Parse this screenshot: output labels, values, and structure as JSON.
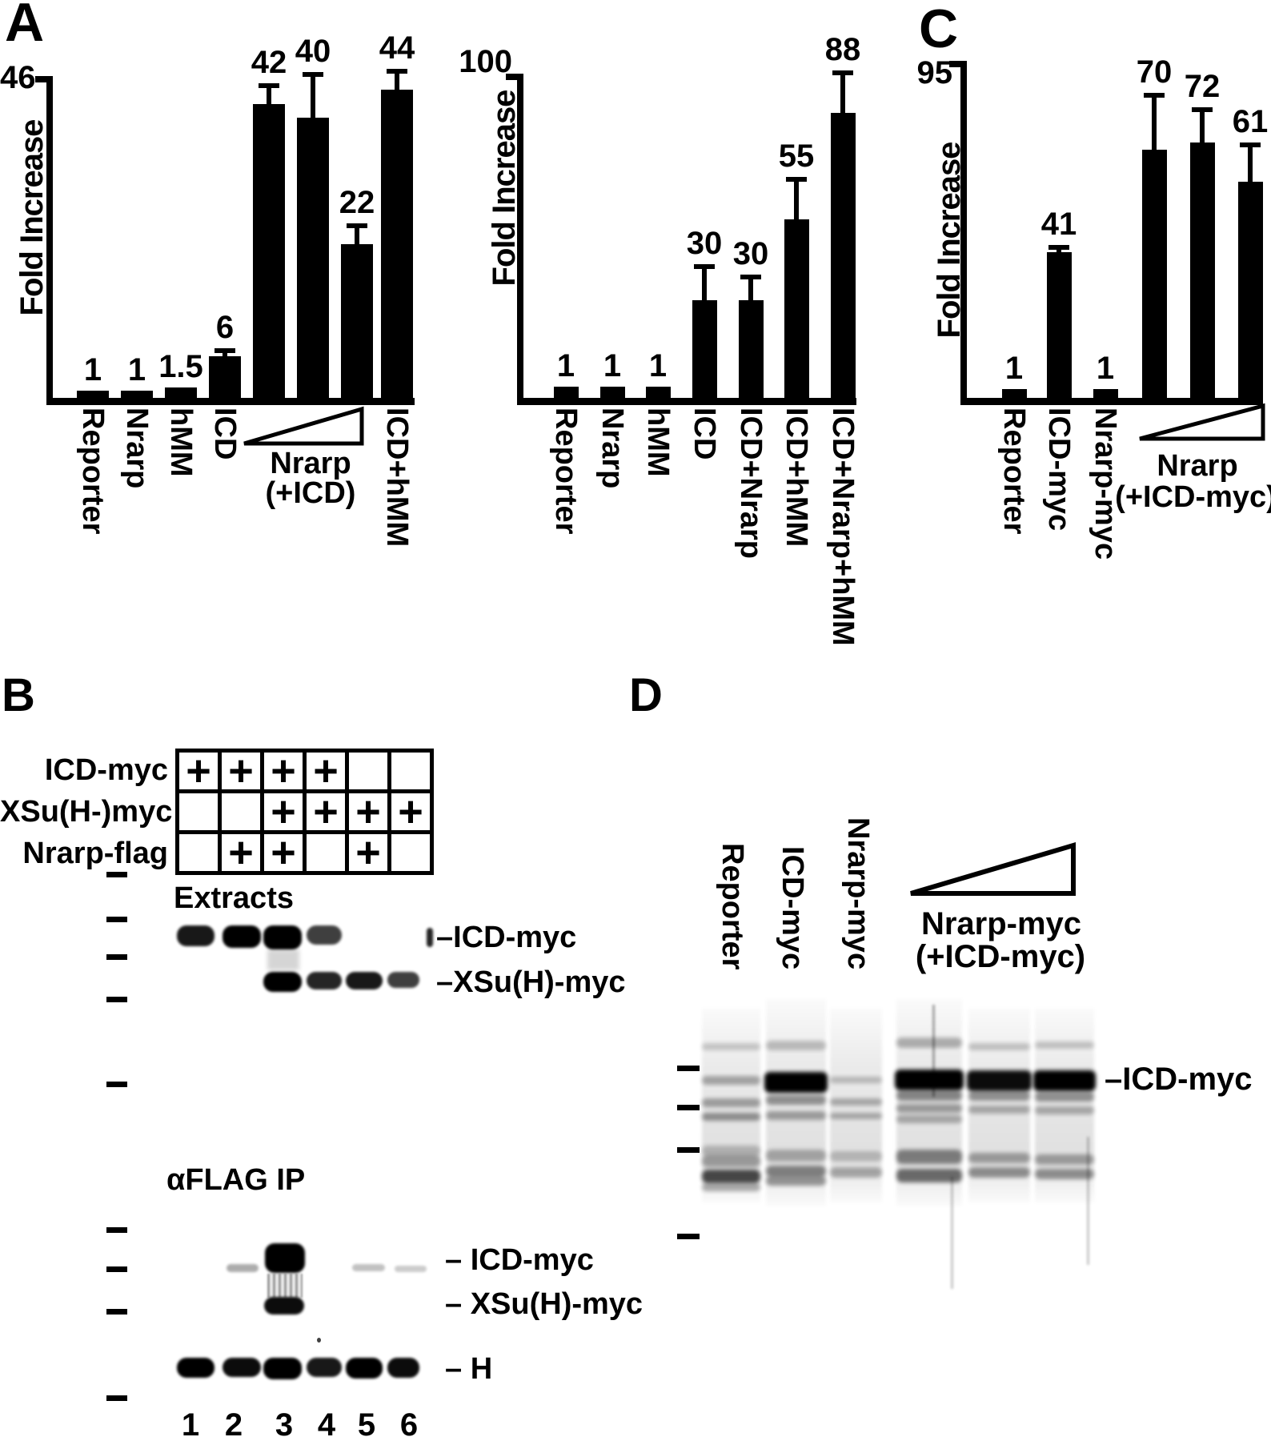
{
  "figure": {
    "background": "#ffffff",
    "ink": "#000000",
    "panel_labels": {
      "a": "A",
      "b": "B",
      "c": "C",
      "d": "D"
    }
  },
  "chart_data": [
    {
      "id": "panel-a-left-chart",
      "type": "bar",
      "title": "",
      "xlabel": "",
      "ylabel": "Fold Increase",
      "axis_top_label": "46",
      "ylim": [
        0,
        46
      ],
      "grid": false,
      "legend": "none",
      "categories": [
        "Reporter",
        "Nrarp",
        "hMM",
        "ICD",
        "",
        "",
        "",
        "ICD+hMM"
      ],
      "values": [
        1,
        1,
        1.5,
        6,
        42,
        40,
        22,
        44
      ],
      "errors_plus": [
        0,
        0,
        0,
        1.2,
        3,
        6.5,
        3,
        3
      ],
      "value_labels": [
        "1",
        "1",
        "1.5",
        "6",
        "42",
        "40",
        "22",
        "44"
      ],
      "dose_group": {
        "bar_indices": [
          4,
          5,
          6
        ],
        "label_line1": "Nrarp",
        "label_line2": "(+ICD)"
      }
    },
    {
      "id": "panel-a-right-chart",
      "type": "bar",
      "title": "",
      "xlabel": "",
      "ylabel": "Fold Increase",
      "axis_top_label": "100",
      "ylim": [
        0,
        100
      ],
      "grid": false,
      "legend": "none",
      "categories": [
        "Reporter",
        "Nrarp",
        "hMM",
        "ICD",
        "ICD+Nrarp",
        "ICD+hMM",
        "ICD+Nrarp+hMM"
      ],
      "values": [
        1,
        1,
        1,
        30,
        30,
        55,
        88
      ],
      "errors_plus": [
        0,
        0,
        0,
        11,
        8,
        13,
        13
      ],
      "value_labels": [
        "1",
        "1",
        "1",
        "30",
        "30",
        "55",
        "88"
      ],
      "dose_group": null
    },
    {
      "id": "panel-c-chart",
      "type": "bar",
      "title": "",
      "xlabel": "",
      "ylabel": "Fold Increase",
      "axis_top_label": "95",
      "ylim": [
        0,
        95
      ],
      "grid": false,
      "legend": "none",
      "categories": [
        "Reporter",
        "ICD-myc",
        "Nrarp-myc",
        "",
        "",
        ""
      ],
      "values": [
        1,
        41,
        1,
        70,
        72,
        61
      ],
      "errors_plus": [
        0,
        2,
        0,
        16,
        10,
        11
      ],
      "value_labels": [
        "1",
        "41",
        "1",
        "70",
        "72",
        "61"
      ],
      "dose_group": {
        "bar_indices": [
          3,
          4,
          5
        ],
        "label_line1": "Nrarp",
        "label_line2": "(+ICD-myc)"
      }
    }
  ],
  "panel_b": {
    "table": {
      "row_labels": [
        "ICD-myc",
        "XSu(H-)myc",
        "Nrarp-flag"
      ],
      "plus_sign": "+",
      "matrix": [
        [
          1,
          1,
          1,
          1,
          0,
          0
        ],
        [
          0,
          0,
          1,
          1,
          1,
          1
        ],
        [
          0,
          1,
          1,
          0,
          1,
          0
        ]
      ]
    },
    "extracts": {
      "title": "Extracts",
      "rows": [
        {
          "label": "–ICD-myc",
          "intensities": [
            0.9,
            1,
            1,
            0.75,
            0,
            0
          ]
        },
        {
          "label": "–XSu(H)-myc",
          "intensities": [
            0,
            0,
            1,
            0.85,
            0.9,
            0.75
          ]
        }
      ]
    },
    "ip": {
      "title": "αFLAG IP",
      "rows": [
        {
          "label": "– ICD-myc",
          "intensities": [
            0,
            0.32,
            1,
            0,
            0.24,
            0.2
          ]
        },
        {
          "label": "– XSu(H)-myc",
          "intensities": [
            0,
            0,
            0.95,
            0,
            0,
            0
          ]
        },
        {
          "label": "– H",
          "intensities": [
            1,
            0.95,
            1,
            0.9,
            1,
            0.95
          ]
        }
      ]
    },
    "lane_numbers": [
      "1",
      "2",
      "3",
      "4",
      "5",
      "6"
    ]
  },
  "panel_d": {
    "lane_labels": [
      "Reporter",
      "ICD-myc",
      "Nrarp-myc"
    ],
    "dose_label_line1": "Nrarp-myc",
    "dose_label_line2": "(+ICD-myc)",
    "band_label": "–ICD-myc",
    "main_band_intensities": [
      0,
      1,
      0,
      1,
      0.95,
      1
    ]
  }
}
